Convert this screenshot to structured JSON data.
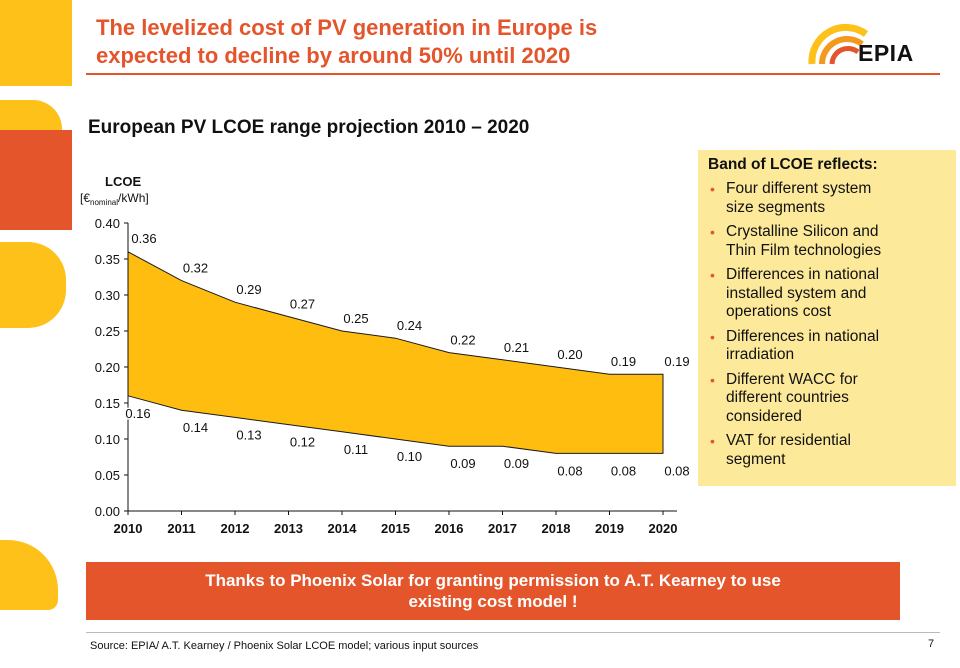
{
  "slide": {
    "title_line1": "The levelized cost of PV generation in Europe is",
    "title_line2": "expected to decline by around 50% until 2020",
    "logo_text": "EPIA",
    "page_number": "7",
    "source": "Source: EPIA/ A.T. Kearney / Phoenix Solar LCOE model; various input sources",
    "banner_line1": "Thanks to Phoenix Solar for granting permission to A.T. Kearney to use",
    "banner_line2": "existing cost model !"
  },
  "colors": {
    "accent_orange": "#e4552b",
    "band_fill": "#ffbe0f",
    "info_box_bg": "#fde99a",
    "deco_yellow": "#fdc11a",
    "deco_orange": "#e4552b"
  },
  "info_box": {
    "heading": "Band of LCOE reflects:",
    "items": [
      {
        "line1": "Four different system",
        "line2": "size segments",
        "line3": ""
      },
      {
        "line1": "Crystalline Silicon and",
        "line2": "Thin Film technologies",
        "line3": ""
      },
      {
        "line1": "Differences in national",
        "line2": "installed system and",
        "line3": "operations cost"
      },
      {
        "line1": "Differences in national",
        "line2": "irradiation",
        "line3": ""
      },
      {
        "line1": "Different WACC for",
        "line2": "different countries",
        "line3": "considered"
      },
      {
        "line1": "VAT for residential",
        "line2": "segment",
        "line3": ""
      }
    ]
  },
  "chart_data": {
    "type": "area",
    "title": "European PV LCOE range projection 2010 – 2020",
    "ylabel_line1": "LCOE",
    "ylabel_unit_prefix": "[€",
    "ylabel_unit_sub": "nominal",
    "ylabel_unit_suffix": "/kWh]",
    "x": [
      "2010",
      "2011",
      "2012",
      "2013",
      "2014",
      "2015",
      "2016",
      "2017",
      "2018",
      "2019",
      "2020"
    ],
    "ylim": [
      0,
      0.4
    ],
    "yticks": [
      "0.00",
      "0.05",
      "0.10",
      "0.15",
      "0.20",
      "0.25",
      "0.30",
      "0.35",
      "0.40"
    ],
    "series": [
      {
        "role": "upper bound",
        "values": [
          0.36,
          0.32,
          0.29,
          0.27,
          0.25,
          0.24,
          0.22,
          0.21,
          0.2,
          0.19,
          0.19
        ],
        "labels": [
          "0.36",
          "0.32",
          "0.29",
          "0.27",
          "0.25",
          "0.24",
          "0.22",
          "0.21",
          "0.20",
          "0.19",
          "0.19"
        ]
      },
      {
        "role": "lower bound",
        "values": [
          0.16,
          0.14,
          0.13,
          0.12,
          0.11,
          0.1,
          0.09,
          0.09,
          0.08,
          0.08,
          0.08
        ],
        "labels": [
          "0.16",
          "0.14",
          "0.13",
          "0.12",
          "0.11",
          "0.10",
          "0.09",
          "0.09",
          "0.08",
          "0.08",
          "0.08"
        ]
      }
    ],
    "grid": false,
    "legend": "none"
  }
}
